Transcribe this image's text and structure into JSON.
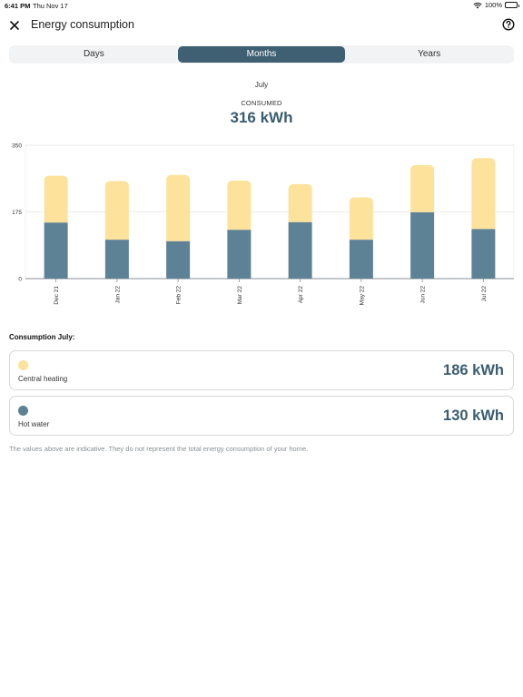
{
  "status": {
    "time": "6:41 PM",
    "date": "Thu Nov 17",
    "battery": "100%",
    "battery_level": 1.0
  },
  "header": {
    "title": "Energy consumption",
    "close_icon": "close-icon",
    "help_icon": "help-icon"
  },
  "segments": [
    {
      "label": "Days",
      "active": false
    },
    {
      "label": "Months",
      "active": true
    },
    {
      "label": "Years",
      "active": false
    }
  ],
  "summary": {
    "month": "July",
    "label": "CONSUMED",
    "value": "316 kWh"
  },
  "colors": {
    "central_heating": "#fde29c",
    "hot_water": "#5e8295",
    "accent": "#3f6072",
    "value_text": "#3a5d70"
  },
  "chart_data": {
    "type": "bar",
    "stacked": true,
    "categories": [
      "Dec 21",
      "Jan 22",
      "Feb 22",
      "Mar 22",
      "Apr 22",
      "May 22",
      "Jun 22",
      "Jul 22"
    ],
    "series": [
      {
        "name": "Hot water",
        "values": [
          147,
          102,
          98,
          128,
          148,
          102,
          174,
          130
        ]
      },
      {
        "name": "Central heating",
        "values": [
          123,
          154,
          174,
          129,
          100,
          111,
          124,
          186
        ]
      }
    ],
    "yticks": [
      "0",
      "175",
      "350"
    ],
    "ylim": [
      0,
      350
    ],
    "grid": true
  },
  "consumption": {
    "title": "Consumption July:",
    "items": [
      {
        "name": "Central heating",
        "value": "186 kWh"
      },
      {
        "name": "Hot water",
        "value": "130 kWh"
      }
    ]
  },
  "disclaimer": "The values above are indicative. They do not represent the total energy consumption of your home."
}
